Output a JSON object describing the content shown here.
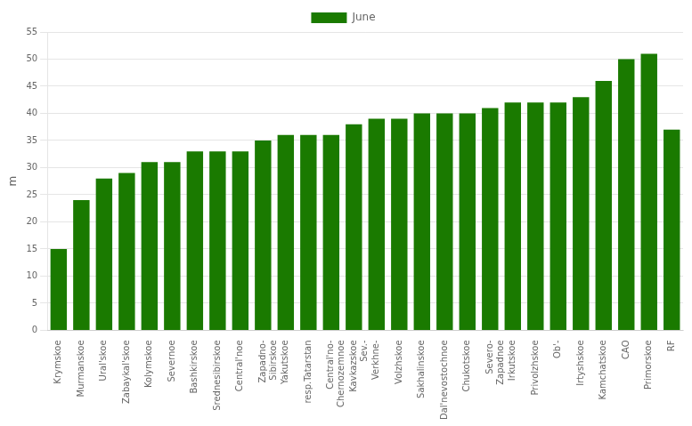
{
  "chart_data": {
    "type": "bar",
    "categories": [
      "Krymskoe",
      "Murmanskoe",
      "Ural'skoe",
      "Zabaykal'skoe",
      "Kolymskoe",
      "Severnoe",
      "Bashkirskoe",
      "Srednesibirskoe",
      "Central'noe",
      "Zapadno-\nSibirskoe",
      "Yakutskoe",
      "resp.Tatarstan",
      "Central'no-\nChernozemnoe",
      "Kavkazskoe\nSev.-",
      "Verkhne-",
      "Volzhskoe",
      "Sakhalinskoe",
      "Dal'nevostochnoe",
      "Chukotskoe",
      "Severo-\nZapadnoe",
      "Irkutskoe",
      "Privolzhskoe",
      "Ob'-",
      "Irtyshskoe",
      "Kamchatskoe",
      "CAO",
      "Primorskoe",
      "RF"
    ],
    "series": [
      {
        "name": "June",
        "color": "#1a7a00",
        "values": [
          15,
          24,
          28,
          29,
          31,
          31,
          33,
          33,
          33,
          35,
          36,
          36,
          36,
          38,
          39,
          39,
          40,
          40,
          40,
          41,
          42,
          42,
          42,
          43,
          46,
          50,
          51,
          37
        ]
      }
    ],
    "ylabel": "m",
    "ylim": [
      0,
      55
    ],
    "yticks": [
      0,
      5,
      10,
      15,
      20,
      25,
      30,
      35,
      40,
      45,
      50,
      55
    ],
    "grid": true,
    "legend": "top"
  }
}
